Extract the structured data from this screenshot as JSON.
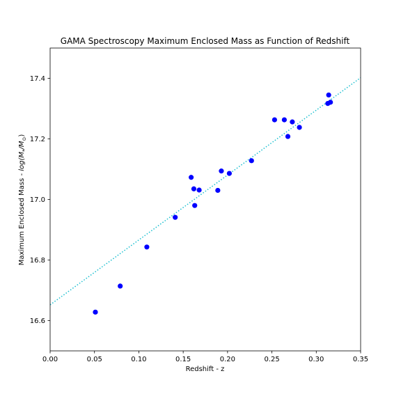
{
  "chart_data": {
    "type": "scatter",
    "title": "GAMA Spectroscopy Maximum Enclosed Mass as Function of Redshift",
    "xlabel": "Redshift - z",
    "ylabel_prefix": "Maximum Enclosed Mass - ",
    "ylabel_math": "log(M",
    "ylabel_sub1": "*",
    "ylabel_mid": "/M",
    "ylabel_sub2": "⊙",
    "ylabel_end": ")",
    "xlim": [
      0.0,
      0.35
    ],
    "ylim": [
      16.5,
      17.5
    ],
    "xticks": [
      0.0,
      0.05,
      0.1,
      0.15,
      0.2,
      0.25,
      0.3,
      0.35
    ],
    "xtick_labels": [
      "0.00",
      "0.05",
      "0.10",
      "0.15",
      "0.20",
      "0.25",
      "0.30",
      "0.35"
    ],
    "yticks": [
      16.6,
      16.8,
      17.0,
      17.2,
      17.4
    ],
    "ytick_labels": [
      "16.6",
      "16.8",
      "17.0",
      "17.2",
      "17.4"
    ],
    "grid": false,
    "point_color": "#0000ff",
    "fit_line_color": "#17becf",
    "fit_line": {
      "x": [
        0.0,
        0.35
      ],
      "y": [
        16.652,
        17.402
      ]
    },
    "points": [
      {
        "x": 0.051,
        "y": 16.628
      },
      {
        "x": 0.079,
        "y": 16.714
      },
      {
        "x": 0.109,
        "y": 16.843
      },
      {
        "x": 0.141,
        "y": 16.941
      },
      {
        "x": 0.159,
        "y": 17.073
      },
      {
        "x": 0.162,
        "y": 17.035
      },
      {
        "x": 0.163,
        "y": 16.98
      },
      {
        "x": 0.168,
        "y": 17.031
      },
      {
        "x": 0.189,
        "y": 17.03
      },
      {
        "x": 0.193,
        "y": 17.094
      },
      {
        "x": 0.202,
        "y": 17.086
      },
      {
        "x": 0.227,
        "y": 17.128
      },
      {
        "x": 0.253,
        "y": 17.263
      },
      {
        "x": 0.264,
        "y": 17.263
      },
      {
        "x": 0.268,
        "y": 17.208
      },
      {
        "x": 0.273,
        "y": 17.256
      },
      {
        "x": 0.281,
        "y": 17.238
      },
      {
        "x": 0.313,
        "y": 17.317
      },
      {
        "x": 0.314,
        "y": 17.345
      },
      {
        "x": 0.316,
        "y": 17.321
      }
    ]
  }
}
